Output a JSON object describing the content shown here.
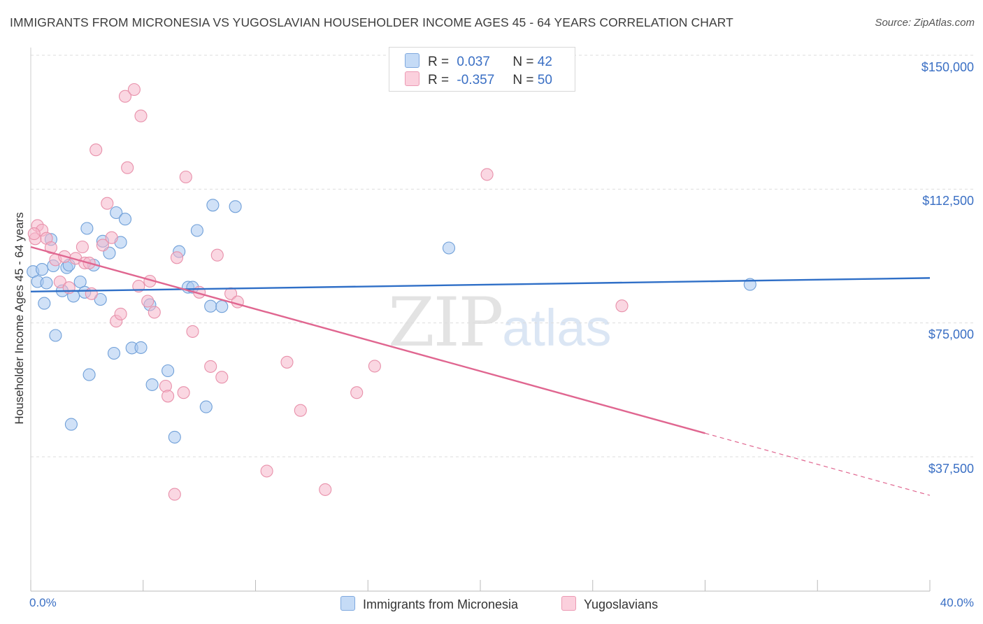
{
  "header": {
    "title": "IMMIGRANTS FROM MICRONESIA VS YUGOSLAVIAN HOUSEHOLDER INCOME AGES 45 - 64 YEARS CORRELATION CHART",
    "source": "Source: ZipAtlas.com"
  },
  "watermark": {
    "zip": "ZIP",
    "atlas": "atlas"
  },
  "legend_top": {
    "rows": [
      {
        "r_label": "R =",
        "r_value": "0.037",
        "n_label": "N =",
        "n_value": "42",
        "color": "#a9c8f0"
      },
      {
        "r_label": "R =",
        "r_value": "-0.357",
        "n_label": "N =",
        "n_value": "50",
        "color": "#f6b7cb"
      }
    ]
  },
  "legend_bottom": {
    "series1": "Immigrants from Micronesia",
    "series2": "Yugoslavians"
  },
  "chart_data": {
    "type": "scatter",
    "ylabel": "Householder Income Ages 45 - 64 years",
    "xlabel": "",
    "x_tick_labels": [
      "0.0%",
      "40.0%"
    ],
    "y_tick_labels": [
      "$150,000",
      "$112,500",
      "$75,000",
      "$37,500"
    ],
    "xlim": [
      0,
      40
    ],
    "ylim": [
      0,
      155000
    ],
    "y_ticks": [
      150000,
      112500,
      75000,
      37500
    ],
    "grid": true,
    "legend_placement": "top-center",
    "series": [
      {
        "name": "Immigrants from Micronesia",
        "color": "#a9c8f0",
        "stroke": "#6f9fd8",
        "trend_color": "#2f6fc7",
        "trend": {
          "x0": 0,
          "y0": 83800,
          "x1": 40,
          "y1": 87600
        },
        "points": [
          [
            0.1,
            89400
          ],
          [
            0.3,
            86600
          ],
          [
            0.5,
            90000
          ],
          [
            0.6,
            80500
          ],
          [
            0.7,
            86200
          ],
          [
            0.9,
            98400
          ],
          [
            1.0,
            91000
          ],
          [
            1.1,
            71500
          ],
          [
            1.4,
            84000
          ],
          [
            1.6,
            90500
          ],
          [
            1.7,
            91200
          ],
          [
            1.8,
            46600
          ],
          [
            1.9,
            82500
          ],
          [
            2.2,
            86500
          ],
          [
            2.4,
            83600
          ],
          [
            2.5,
            101500
          ],
          [
            2.6,
            60500
          ],
          [
            2.8,
            91200
          ],
          [
            3.1,
            81600
          ],
          [
            3.2,
            97900
          ],
          [
            3.5,
            94600
          ],
          [
            3.7,
            66500
          ],
          [
            3.8,
            105900
          ],
          [
            4.0,
            97600
          ],
          [
            4.2,
            104100
          ],
          [
            4.5,
            68000
          ],
          [
            4.9,
            68100
          ],
          [
            5.3,
            80100
          ],
          [
            5.4,
            57700
          ],
          [
            6.1,
            61600
          ],
          [
            6.4,
            43000
          ],
          [
            6.6,
            95000
          ],
          [
            7.0,
            85000
          ],
          [
            7.2,
            85000
          ],
          [
            7.4,
            100900
          ],
          [
            7.8,
            51500
          ],
          [
            8.0,
            79700
          ],
          [
            8.1,
            108000
          ],
          [
            8.5,
            79600
          ],
          [
            9.1,
            107600
          ],
          [
            18.6,
            96000
          ],
          [
            32.0,
            85800
          ]
        ]
      },
      {
        "name": "Yugoslavians",
        "color": "#f6b7cb",
        "stroke": "#e890aa",
        "trend_color": "#e06690",
        "trend": {
          "x0": 0,
          "y0": 96300,
          "x1": 30,
          "y1": 44100
        },
        "trend_dashed": {
          "x0": 30,
          "y0": 44100,
          "x1": 40,
          "y1": 26700
        },
        "points": [
          [
            0.2,
            98600
          ],
          [
            0.3,
            102300
          ],
          [
            0.5,
            101000
          ],
          [
            0.7,
            98700
          ],
          [
            0.9,
            96100
          ],
          [
            1.1,
            92700
          ],
          [
            1.3,
            86500
          ],
          [
            1.5,
            93600
          ],
          [
            1.7,
            84900
          ],
          [
            2.0,
            93100
          ],
          [
            2.3,
            96300
          ],
          [
            2.4,
            91800
          ],
          [
            2.6,
            91800
          ],
          [
            2.7,
            83200
          ],
          [
            2.9,
            123500
          ],
          [
            3.2,
            96800
          ],
          [
            3.4,
            108500
          ],
          [
            3.6,
            98900
          ],
          [
            3.8,
            75500
          ],
          [
            4.0,
            77500
          ],
          [
            4.2,
            138500
          ],
          [
            4.3,
            118500
          ],
          [
            4.6,
            140400
          ],
          [
            4.8,
            85300
          ],
          [
            4.9,
            133000
          ],
          [
            5.2,
            81100
          ],
          [
            5.3,
            86700
          ],
          [
            5.5,
            78000
          ],
          [
            6.0,
            57300
          ],
          [
            6.1,
            54500
          ],
          [
            6.4,
            27000
          ],
          [
            6.5,
            93300
          ],
          [
            6.8,
            55500
          ],
          [
            6.9,
            115900
          ],
          [
            7.2,
            72600
          ],
          [
            7.5,
            83600
          ],
          [
            8.0,
            62800
          ],
          [
            8.3,
            94000
          ],
          [
            8.5,
            59800
          ],
          [
            8.9,
            83200
          ],
          [
            9.2,
            80900
          ],
          [
            10.5,
            33500
          ],
          [
            11.4,
            64000
          ],
          [
            12.0,
            50500
          ],
          [
            13.1,
            28300
          ],
          [
            14.5,
            55500
          ],
          [
            15.3,
            62900
          ],
          [
            20.3,
            116600
          ],
          [
            26.3,
            79800
          ],
          [
            0.15,
            100000
          ]
        ]
      }
    ]
  }
}
